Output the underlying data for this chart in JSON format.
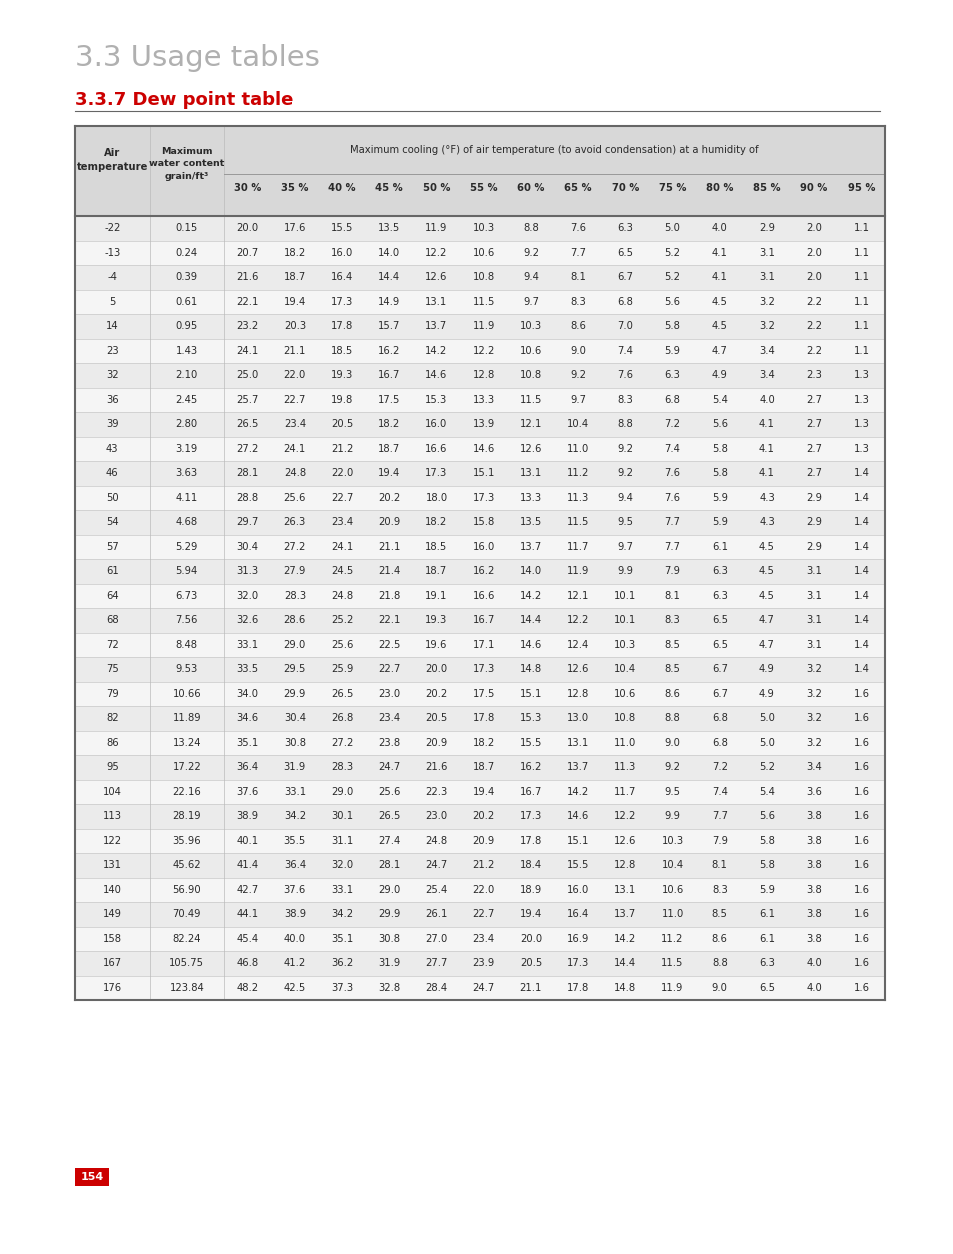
{
  "title": "3.3 Usage tables",
  "subtitle": "3.3.7 Dew point table",
  "header_main": "Maximum cooling (°F) of air temperature (to avoid condensation) at a humidity of",
  "humidity_cols": [
    "30 %",
    "35 %",
    "40 %",
    "45 %",
    "50 %",
    "55 %",
    "60 %",
    "65 %",
    "70 %",
    "75 %",
    "80 %",
    "85 %",
    "90 %",
    "95 %"
  ],
  "rows": [
    [
      "-22",
      "0.15",
      "20.0",
      "17.6",
      "15.5",
      "13.5",
      "11.9",
      "10.3",
      "8.8",
      "7.6",
      "6.3",
      "5.0",
      "4.0",
      "2.9",
      "2.0",
      "1.1"
    ],
    [
      "-13",
      "0.24",
      "20.7",
      "18.2",
      "16.0",
      "14.0",
      "12.2",
      "10.6",
      "9.2",
      "7.7",
      "6.5",
      "5.2",
      "4.1",
      "3.1",
      "2.0",
      "1.1"
    ],
    [
      "-4",
      "0.39",
      "21.6",
      "18.7",
      "16.4",
      "14.4",
      "12.6",
      "10.8",
      "9.4",
      "8.1",
      "6.7",
      "5.2",
      "4.1",
      "3.1",
      "2.0",
      "1.1"
    ],
    [
      "5",
      "0.61",
      "22.1",
      "19.4",
      "17.3",
      "14.9",
      "13.1",
      "11.5",
      "9.7",
      "8.3",
      "6.8",
      "5.6",
      "4.5",
      "3.2",
      "2.2",
      "1.1"
    ],
    [
      "14",
      "0.95",
      "23.2",
      "20.3",
      "17.8",
      "15.7",
      "13.7",
      "11.9",
      "10.3",
      "8.6",
      "7.0",
      "5.8",
      "4.5",
      "3.2",
      "2.2",
      "1.1"
    ],
    [
      "23",
      "1.43",
      "24.1",
      "21.1",
      "18.5",
      "16.2",
      "14.2",
      "12.2",
      "10.6",
      "9.0",
      "7.4",
      "5.9",
      "4.7",
      "3.4",
      "2.2",
      "1.1"
    ],
    [
      "32",
      "2.10",
      "25.0",
      "22.0",
      "19.3",
      "16.7",
      "14.6",
      "12.8",
      "10.8",
      "9.2",
      "7.6",
      "6.3",
      "4.9",
      "3.4",
      "2.3",
      "1.3"
    ],
    [
      "36",
      "2.45",
      "25.7",
      "22.7",
      "19.8",
      "17.5",
      "15.3",
      "13.3",
      "11.5",
      "9.7",
      "8.3",
      "6.8",
      "5.4",
      "4.0",
      "2.7",
      "1.3"
    ],
    [
      "39",
      "2.80",
      "26.5",
      "23.4",
      "20.5",
      "18.2",
      "16.0",
      "13.9",
      "12.1",
      "10.4",
      "8.8",
      "7.2",
      "5.6",
      "4.1",
      "2.7",
      "1.3"
    ],
    [
      "43",
      "3.19",
      "27.2",
      "24.1",
      "21.2",
      "18.7",
      "16.6",
      "14.6",
      "12.6",
      "11.0",
      "9.2",
      "7.4",
      "5.8",
      "4.1",
      "2.7",
      "1.3"
    ],
    [
      "46",
      "3.63",
      "28.1",
      "24.8",
      "22.0",
      "19.4",
      "17.3",
      "15.1",
      "13.1",
      "11.2",
      "9.2",
      "7.6",
      "5.8",
      "4.1",
      "2.7",
      "1.4"
    ],
    [
      "50",
      "4.11",
      "28.8",
      "25.6",
      "22.7",
      "20.2",
      "18.0",
      "17.3",
      "13.3",
      "11.3",
      "9.4",
      "7.6",
      "5.9",
      "4.3",
      "2.9",
      "1.4"
    ],
    [
      "54",
      "4.68",
      "29.7",
      "26.3",
      "23.4",
      "20.9",
      "18.2",
      "15.8",
      "13.5",
      "11.5",
      "9.5",
      "7.7",
      "5.9",
      "4.3",
      "2.9",
      "1.4"
    ],
    [
      "57",
      "5.29",
      "30.4",
      "27.2",
      "24.1",
      "21.1",
      "18.5",
      "16.0",
      "13.7",
      "11.7",
      "9.7",
      "7.7",
      "6.1",
      "4.5",
      "2.9",
      "1.4"
    ],
    [
      "61",
      "5.94",
      "31.3",
      "27.9",
      "24.5",
      "21.4",
      "18.7",
      "16.2",
      "14.0",
      "11.9",
      "9.9",
      "7.9",
      "6.3",
      "4.5",
      "3.1",
      "1.4"
    ],
    [
      "64",
      "6.73",
      "32.0",
      "28.3",
      "24.8",
      "21.8",
      "19.1",
      "16.6",
      "14.2",
      "12.1",
      "10.1",
      "8.1",
      "6.3",
      "4.5",
      "3.1",
      "1.4"
    ],
    [
      "68",
      "7.56",
      "32.6",
      "28.6",
      "25.2",
      "22.1",
      "19.3",
      "16.7",
      "14.4",
      "12.2",
      "10.1",
      "8.3",
      "6.5",
      "4.7",
      "3.1",
      "1.4"
    ],
    [
      "72",
      "8.48",
      "33.1",
      "29.0",
      "25.6",
      "22.5",
      "19.6",
      "17.1",
      "14.6",
      "12.4",
      "10.3",
      "8.5",
      "6.5",
      "4.7",
      "3.1",
      "1.4"
    ],
    [
      "75",
      "9.53",
      "33.5",
      "29.5",
      "25.9",
      "22.7",
      "20.0",
      "17.3",
      "14.8",
      "12.6",
      "10.4",
      "8.5",
      "6.7",
      "4.9",
      "3.2",
      "1.4"
    ],
    [
      "79",
      "10.66",
      "34.0",
      "29.9",
      "26.5",
      "23.0",
      "20.2",
      "17.5",
      "15.1",
      "12.8",
      "10.6",
      "8.6",
      "6.7",
      "4.9",
      "3.2",
      "1.6"
    ],
    [
      "82",
      "11.89",
      "34.6",
      "30.4",
      "26.8",
      "23.4",
      "20.5",
      "17.8",
      "15.3",
      "13.0",
      "10.8",
      "8.8",
      "6.8",
      "5.0",
      "3.2",
      "1.6"
    ],
    [
      "86",
      "13.24",
      "35.1",
      "30.8",
      "27.2",
      "23.8",
      "20.9",
      "18.2",
      "15.5",
      "13.1",
      "11.0",
      "9.0",
      "6.8",
      "5.0",
      "3.2",
      "1.6"
    ],
    [
      "95",
      "17.22",
      "36.4",
      "31.9",
      "28.3",
      "24.7",
      "21.6",
      "18.7",
      "16.2",
      "13.7",
      "11.3",
      "9.2",
      "7.2",
      "5.2",
      "3.4",
      "1.6"
    ],
    [
      "104",
      "22.16",
      "37.6",
      "33.1",
      "29.0",
      "25.6",
      "22.3",
      "19.4",
      "16.7",
      "14.2",
      "11.7",
      "9.5",
      "7.4",
      "5.4",
      "3.6",
      "1.6"
    ],
    [
      "113",
      "28.19",
      "38.9",
      "34.2",
      "30.1",
      "26.5",
      "23.0",
      "20.2",
      "17.3",
      "14.6",
      "12.2",
      "9.9",
      "7.7",
      "5.6",
      "3.8",
      "1.6"
    ],
    [
      "122",
      "35.96",
      "40.1",
      "35.5",
      "31.1",
      "27.4",
      "24.8",
      "20.9",
      "17.8",
      "15.1",
      "12.6",
      "10.3",
      "7.9",
      "5.8",
      "3.8",
      "1.6"
    ],
    [
      "131",
      "45.62",
      "41.4",
      "36.4",
      "32.0",
      "28.1",
      "24.7",
      "21.2",
      "18.4",
      "15.5",
      "12.8",
      "10.4",
      "8.1",
      "5.8",
      "3.8",
      "1.6"
    ],
    [
      "140",
      "56.90",
      "42.7",
      "37.6",
      "33.1",
      "29.0",
      "25.4",
      "22.0",
      "18.9",
      "16.0",
      "13.1",
      "10.6",
      "8.3",
      "5.9",
      "3.8",
      "1.6"
    ],
    [
      "149",
      "70.49",
      "44.1",
      "38.9",
      "34.2",
      "29.9",
      "26.1",
      "22.7",
      "19.4",
      "16.4",
      "13.7",
      "11.0",
      "8.5",
      "6.1",
      "3.8",
      "1.6"
    ],
    [
      "158",
      "82.24",
      "45.4",
      "40.0",
      "35.1",
      "30.8",
      "27.0",
      "23.4",
      "20.0",
      "16.9",
      "14.2",
      "11.2",
      "8.6",
      "6.1",
      "3.8",
      "1.6"
    ],
    [
      "167",
      "105.75",
      "46.8",
      "41.2",
      "36.2",
      "31.9",
      "27.7",
      "23.9",
      "20.5",
      "17.3",
      "14.4",
      "11.5",
      "8.8",
      "6.3",
      "4.0",
      "1.6"
    ],
    [
      "176",
      "123.84",
      "48.2",
      "42.5",
      "37.3",
      "32.8",
      "28.4",
      "24.7",
      "21.1",
      "17.8",
      "14.8",
      "11.9",
      "9.0",
      "6.5",
      "4.0",
      "1.6"
    ]
  ],
  "page_number": "154",
  "title_color": "#b0b0b0",
  "subtitle_color": "#cc0000",
  "header_bg": "#d8d8d8",
  "row_bg_odd": "#ebebeb",
  "row_bg_even": "#f5f5f5",
  "border_color": "#666666",
  "separator_color": "#999999",
  "text_color": "#2a2a2a"
}
